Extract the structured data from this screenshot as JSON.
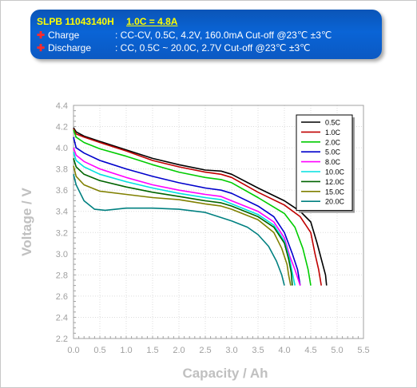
{
  "header": {
    "model": "SLPB 11043140H",
    "rating": "1.0C = 4.8A",
    "charge_label": "Charge",
    "charge_text": ":  CC-CV, 0.5C, 4.2V, 160.0mA Cut-off @23℃ ±3℃",
    "discharge_label": "Discharge",
    "discharge_text": ":  CC, 0.5C ~ 20.0C, 2.7V Cut-off @23℃ ±3℃",
    "bullet_icon": "cross-icon"
  },
  "chart_data": {
    "type": "line",
    "xlabel": "Capacity / Ah",
    "ylabel": "Voltage / V",
    "xlim": [
      0.0,
      5.5
    ],
    "ylim": [
      2.2,
      4.4
    ],
    "xticks": [
      "0.0",
      "0.5",
      "1.0",
      "1.5",
      "2.0",
      "2.5",
      "3.0",
      "3.5",
      "4.0",
      "4.5",
      "5.0",
      "5.5"
    ],
    "yticks": [
      "2.2",
      "2.4",
      "2.6",
      "2.8",
      "3.0",
      "3.2",
      "3.4",
      "3.6",
      "3.8",
      "4.0",
      "4.2",
      "4.4"
    ],
    "grid": true,
    "legend_position": "top-right",
    "series": [
      {
        "name": "0.5C",
        "color": "#000000",
        "points": [
          [
            0,
            4.19
          ],
          [
            0.05,
            4.15
          ],
          [
            0.2,
            4.11
          ],
          [
            0.5,
            4.06
          ],
          [
            1.0,
            3.98
          ],
          [
            1.5,
            3.9
          ],
          [
            2.0,
            3.84
          ],
          [
            2.5,
            3.79
          ],
          [
            2.8,
            3.78
          ],
          [
            3.0,
            3.75
          ],
          [
            3.5,
            3.62
          ],
          [
            4.0,
            3.5
          ],
          [
            4.3,
            3.4
          ],
          [
            4.5,
            3.3
          ],
          [
            4.62,
            3.1
          ],
          [
            4.7,
            2.95
          ],
          [
            4.78,
            2.8
          ],
          [
            4.8,
            2.7
          ]
        ]
      },
      {
        "name": "1.0C",
        "color": "#c00000",
        "points": [
          [
            0,
            4.18
          ],
          [
            0.05,
            4.13
          ],
          [
            0.2,
            4.1
          ],
          [
            0.5,
            4.05
          ],
          [
            1.0,
            3.97
          ],
          [
            1.5,
            3.88
          ],
          [
            2.0,
            3.82
          ],
          [
            2.5,
            3.77
          ],
          [
            2.8,
            3.75
          ],
          [
            3.0,
            3.72
          ],
          [
            3.5,
            3.58
          ],
          [
            4.0,
            3.46
          ],
          [
            4.3,
            3.35
          ],
          [
            4.5,
            3.2
          ],
          [
            4.58,
            3.0
          ],
          [
            4.65,
            2.85
          ],
          [
            4.7,
            2.7
          ]
        ]
      },
      {
        "name": "2.0C",
        "color": "#00cc00",
        "points": [
          [
            0,
            4.17
          ],
          [
            0.05,
            4.1
          ],
          [
            0.2,
            4.05
          ],
          [
            0.5,
            3.99
          ],
          [
            1.0,
            3.92
          ],
          [
            1.5,
            3.84
          ],
          [
            2.0,
            3.77
          ],
          [
            2.5,
            3.72
          ],
          [
            2.8,
            3.7
          ],
          [
            3.0,
            3.67
          ],
          [
            3.5,
            3.53
          ],
          [
            4.0,
            3.38
          ],
          [
            4.2,
            3.25
          ],
          [
            4.35,
            3.05
          ],
          [
            4.45,
            2.85
          ],
          [
            4.5,
            2.7
          ]
        ]
      },
      {
        "name": "5.0C",
        "color": "#0000cc",
        "points": [
          [
            0,
            4.1
          ],
          [
            0.05,
            4.0
          ],
          [
            0.2,
            3.95
          ],
          [
            0.5,
            3.88
          ],
          [
            1.0,
            3.8
          ],
          [
            1.5,
            3.73
          ],
          [
            2.0,
            3.67
          ],
          [
            2.5,
            3.62
          ],
          [
            2.8,
            3.6
          ],
          [
            3.0,
            3.57
          ],
          [
            3.5,
            3.45
          ],
          [
            3.8,
            3.35
          ],
          [
            4.0,
            3.2
          ],
          [
            4.15,
            3.0
          ],
          [
            4.25,
            2.85
          ],
          [
            4.3,
            2.7
          ]
        ]
      },
      {
        "name": "8.0C",
        "color": "#ff00ff",
        "points": [
          [
            0,
            4.0
          ],
          [
            0.05,
            3.93
          ],
          [
            0.2,
            3.87
          ],
          [
            0.5,
            3.8
          ],
          [
            1.0,
            3.72
          ],
          [
            1.5,
            3.65
          ],
          [
            2.0,
            3.6
          ],
          [
            2.5,
            3.56
          ],
          [
            2.8,
            3.54
          ],
          [
            3.0,
            3.5
          ],
          [
            3.5,
            3.4
          ],
          [
            3.8,
            3.3
          ],
          [
            4.0,
            3.15
          ],
          [
            4.1,
            2.98
          ],
          [
            4.2,
            2.85
          ],
          [
            4.3,
            2.7
          ]
        ]
      },
      {
        "name": "10.0C",
        "color": "#00e0e0",
        "points": [
          [
            0,
            3.96
          ],
          [
            0.05,
            3.88
          ],
          [
            0.2,
            3.82
          ],
          [
            0.5,
            3.75
          ],
          [
            1.0,
            3.68
          ],
          [
            1.5,
            3.62
          ],
          [
            2.0,
            3.57
          ],
          [
            2.5,
            3.53
          ],
          [
            2.8,
            3.51
          ],
          [
            3.0,
            3.47
          ],
          [
            3.5,
            3.37
          ],
          [
            3.8,
            3.27
          ],
          [
            4.0,
            3.12
          ],
          [
            4.1,
            2.95
          ],
          [
            4.15,
            2.82
          ],
          [
            4.2,
            2.7
          ]
        ]
      },
      {
        "name": "12.0C",
        "color": "#006400",
        "points": [
          [
            0,
            3.9
          ],
          [
            0.05,
            3.82
          ],
          [
            0.2,
            3.75
          ],
          [
            0.5,
            3.69
          ],
          [
            1.0,
            3.63
          ],
          [
            1.5,
            3.58
          ],
          [
            2.0,
            3.54
          ],
          [
            2.5,
            3.5
          ],
          [
            2.8,
            3.48
          ],
          [
            3.0,
            3.45
          ],
          [
            3.5,
            3.35
          ],
          [
            3.8,
            3.25
          ],
          [
            4.0,
            3.1
          ],
          [
            4.08,
            2.95
          ],
          [
            4.13,
            2.82
          ],
          [
            4.15,
            2.7
          ]
        ]
      },
      {
        "name": "15.0C",
        "color": "#808000",
        "points": [
          [
            0,
            3.83
          ],
          [
            0.05,
            3.73
          ],
          [
            0.2,
            3.65
          ],
          [
            0.5,
            3.59
          ],
          [
            1.0,
            3.56
          ],
          [
            1.5,
            3.53
          ],
          [
            2.0,
            3.51
          ],
          [
            2.5,
            3.47
          ],
          [
            2.8,
            3.45
          ],
          [
            3.0,
            3.42
          ],
          [
            3.5,
            3.32
          ],
          [
            3.8,
            3.2
          ],
          [
            3.95,
            3.05
          ],
          [
            4.05,
            2.9
          ],
          [
            4.08,
            2.8
          ],
          [
            4.12,
            2.7
          ]
        ]
      },
      {
        "name": "20.0C",
        "color": "#008080",
        "points": [
          [
            0,
            3.75
          ],
          [
            0.05,
            3.65
          ],
          [
            0.2,
            3.5
          ],
          [
            0.4,
            3.42
          ],
          [
            0.6,
            3.41
          ],
          [
            0.8,
            3.42
          ],
          [
            1.0,
            3.43
          ],
          [
            1.5,
            3.43
          ],
          [
            2.0,
            3.42
          ],
          [
            2.5,
            3.39
          ],
          [
            3.0,
            3.31
          ],
          [
            3.3,
            3.25
          ],
          [
            3.5,
            3.18
          ],
          [
            3.7,
            3.07
          ],
          [
            3.85,
            2.93
          ],
          [
            3.95,
            2.8
          ],
          [
            4.0,
            2.7
          ]
        ]
      }
    ]
  }
}
